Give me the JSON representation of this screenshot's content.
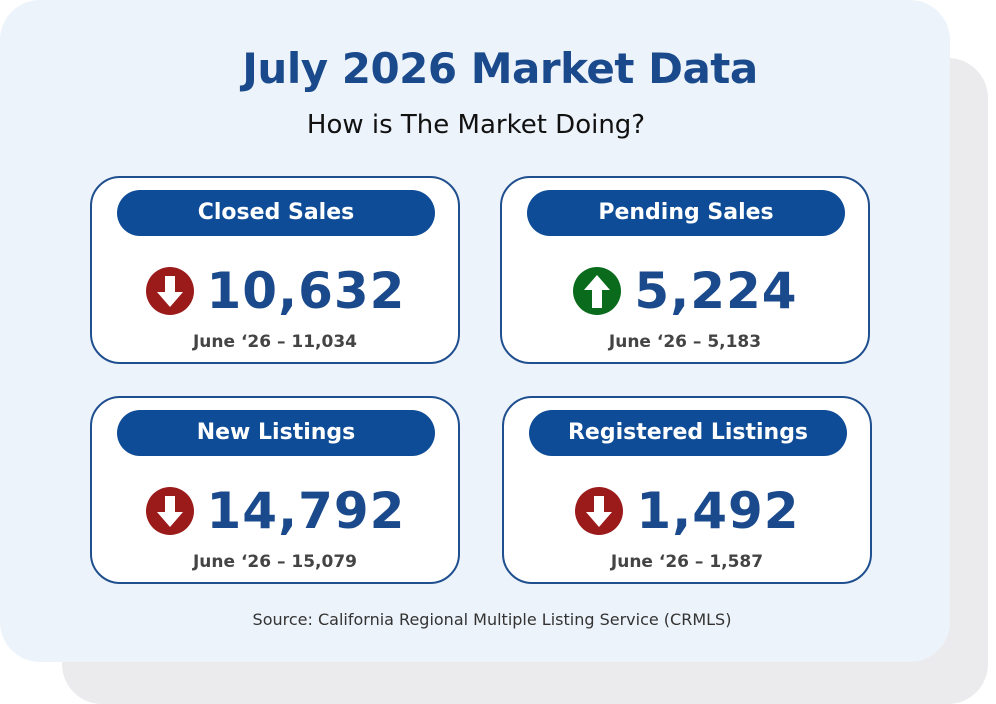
{
  "header": {
    "title": "July 2026 Market Data",
    "subtitle": "How is The Market Doing?"
  },
  "cards": [
    {
      "label": "Closed Sales",
      "value": "10,632",
      "previous": "June ‘26 – 11,034",
      "trend": "down"
    },
    {
      "label": "Pending Sales",
      "value": "5,224",
      "previous": "June ‘26 – 5,183",
      "trend": "up"
    },
    {
      "label": "New Listings",
      "value": "14,792",
      "previous": "June ‘26 – 15,079",
      "trend": "down"
    },
    {
      "label": "Registered Listings",
      "value": "1,492",
      "previous": "June ‘26 – 1,587",
      "trend": "down"
    }
  ],
  "footer": {
    "source": "Source: California Regional Multiple Listing Service (CRMLS)"
  },
  "colors": {
    "brand_blue": "#1a4a8c",
    "pill_blue": "#0f4c97",
    "down_red": "#9b1b1b",
    "up_green": "#0b6b1d"
  },
  "icons": {
    "down": "arrow-down-circle-icon",
    "up": "arrow-up-circle-icon"
  }
}
